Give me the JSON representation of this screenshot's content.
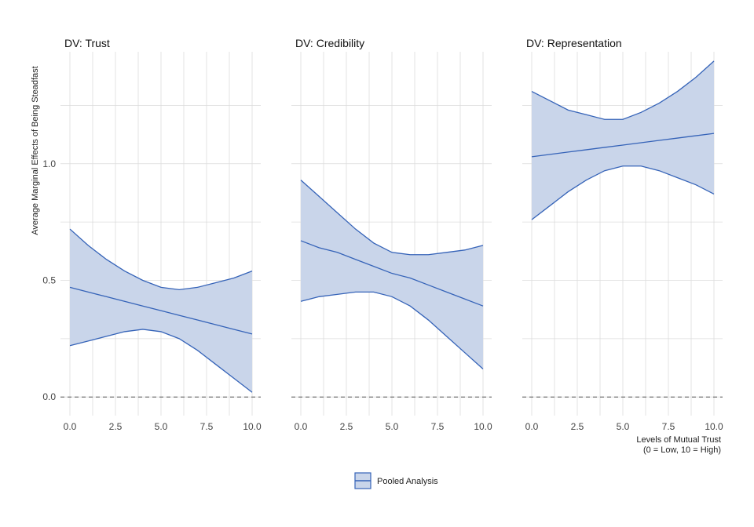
{
  "chart_data": {
    "type": "area",
    "ylabel": "Average Marginal Effects of Being Steadfast",
    "xlabel_line1": "Levels of Mutual Trust",
    "xlabel_line2": "(0 = Low, 10 = High)",
    "xlim": [
      0,
      10
    ],
    "ylim": [
      -0.08,
      1.48
    ],
    "x_ticks": [
      0,
      2.5,
      5,
      7.5,
      10
    ],
    "x_tick_labels": [
      "0.0",
      "2.5",
      "5.0",
      "7.5",
      "10.0"
    ],
    "y_ticks": [
      0,
      0.5,
      1
    ],
    "y_tick_labels": [
      "0.0",
      "0.5",
      "1.0"
    ],
    "reference_line": 0,
    "grid": true,
    "legend": {
      "position": "bottom",
      "label": "Pooled Analysis"
    },
    "colors": {
      "line": "#3563b8",
      "fill": "#c9d5ea",
      "grid": "#dcdcdc",
      "ref": "#555555"
    },
    "x": [
      0,
      1,
      2,
      3,
      4,
      5,
      6,
      7,
      8,
      9,
      10
    ],
    "panels": [
      {
        "title": "DV: Trust",
        "estimate": [
          0.47,
          0.45,
          0.43,
          0.41,
          0.39,
          0.37,
          0.35,
          0.33,
          0.31,
          0.29,
          0.27
        ],
        "upper": [
          0.72,
          0.65,
          0.59,
          0.54,
          0.5,
          0.47,
          0.46,
          0.47,
          0.49,
          0.51,
          0.54
        ],
        "lower": [
          0.22,
          0.24,
          0.26,
          0.28,
          0.29,
          0.28,
          0.25,
          0.2,
          0.14,
          0.08,
          0.02
        ]
      },
      {
        "title": "DV: Credibility",
        "estimate": [
          0.67,
          0.64,
          0.62,
          0.59,
          0.56,
          0.53,
          0.51,
          0.48,
          0.45,
          0.42,
          0.39
        ],
        "upper": [
          0.93,
          0.86,
          0.79,
          0.72,
          0.66,
          0.62,
          0.61,
          0.61,
          0.62,
          0.63,
          0.65
        ],
        "lower": [
          0.41,
          0.43,
          0.44,
          0.45,
          0.45,
          0.43,
          0.39,
          0.33,
          0.26,
          0.19,
          0.12
        ]
      },
      {
        "title": "DV: Representation",
        "estimate": [
          1.03,
          1.04,
          1.05,
          1.06,
          1.07,
          1.08,
          1.09,
          1.1,
          1.11,
          1.12,
          1.13
        ],
        "upper": [
          1.31,
          1.27,
          1.23,
          1.21,
          1.19,
          1.19,
          1.22,
          1.26,
          1.31,
          1.37,
          1.44
        ],
        "lower": [
          0.76,
          0.82,
          0.88,
          0.93,
          0.97,
          0.99,
          0.99,
          0.97,
          0.94,
          0.91,
          0.87
        ]
      }
    ]
  }
}
